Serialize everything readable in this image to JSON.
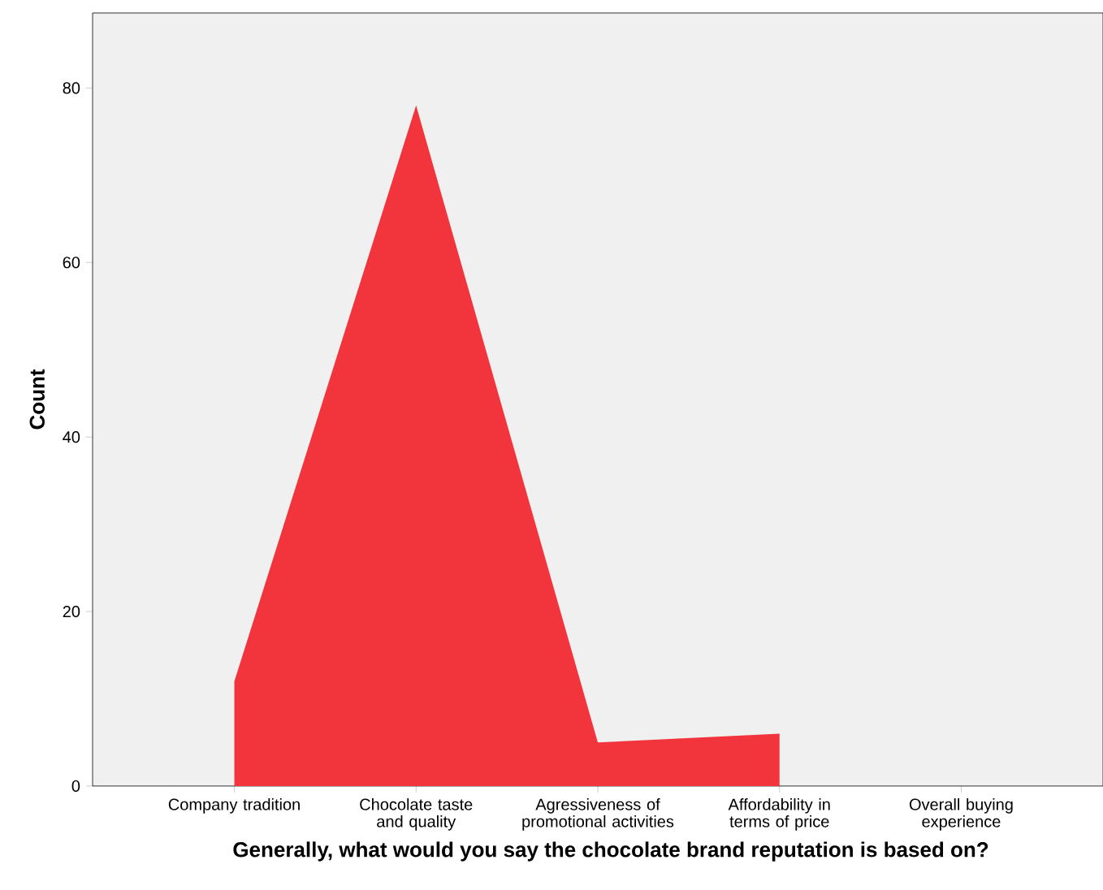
{
  "chart_data": {
    "type": "area",
    "xlabel": "Generally, what would you say the chocolate brand reputation is based on?",
    "ylabel": "Count",
    "categories": [
      "Company tradition",
      "Chocolate taste and quality",
      "Agressiveness of promotional activities",
      "Affordability in terms of price",
      "Overall buying experience"
    ],
    "values": [
      12,
      78,
      5,
      6,
      null
    ],
    "color": "#f2343d",
    "ylim": [
      0,
      88.6
    ],
    "yticks": [
      0,
      20,
      40,
      60,
      80
    ]
  }
}
